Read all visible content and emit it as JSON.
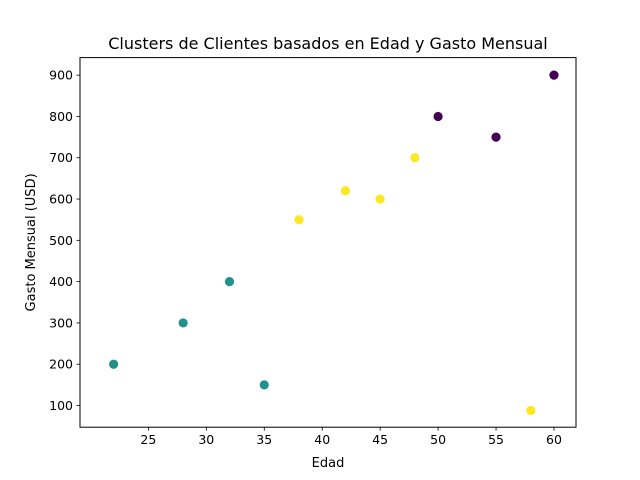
{
  "chart_data": {
    "type": "scatter",
    "title": "Clusters de Clientes basados en Edad y Gasto Mensual",
    "xlabel": "Edad",
    "ylabel": "Gasto Mensual (USD)",
    "xlim": [
      19.1,
      61.9
    ],
    "ylim": [
      47.5,
      942.5
    ],
    "xticks": [
      25,
      30,
      35,
      40,
      45,
      50,
      55,
      60
    ],
    "yticks": [
      100,
      200,
      300,
      400,
      500,
      600,
      700,
      800,
      900
    ],
    "grid": false,
    "legend": "none",
    "cluster_colors": [
      "#440154",
      "#21918c",
      "#fde725"
    ],
    "points": [
      {
        "x": 22,
        "y": 200,
        "cluster": 1
      },
      {
        "x": 28,
        "y": 300,
        "cluster": 1
      },
      {
        "x": 32,
        "y": 400,
        "cluster": 1
      },
      {
        "x": 35,
        "y": 150,
        "cluster": 1
      },
      {
        "x": 38,
        "y": 550,
        "cluster": 2
      },
      {
        "x": 42,
        "y": 620,
        "cluster": 2
      },
      {
        "x": 45,
        "y": 600,
        "cluster": 2
      },
      {
        "x": 48,
        "y": 700,
        "cluster": 2
      },
      {
        "x": 58,
        "y": 88,
        "cluster": 2
      },
      {
        "x": 50,
        "y": 800,
        "cluster": 0
      },
      {
        "x": 55,
        "y": 750,
        "cluster": 0
      },
      {
        "x": 60,
        "y": 900,
        "cluster": 0
      }
    ]
  }
}
